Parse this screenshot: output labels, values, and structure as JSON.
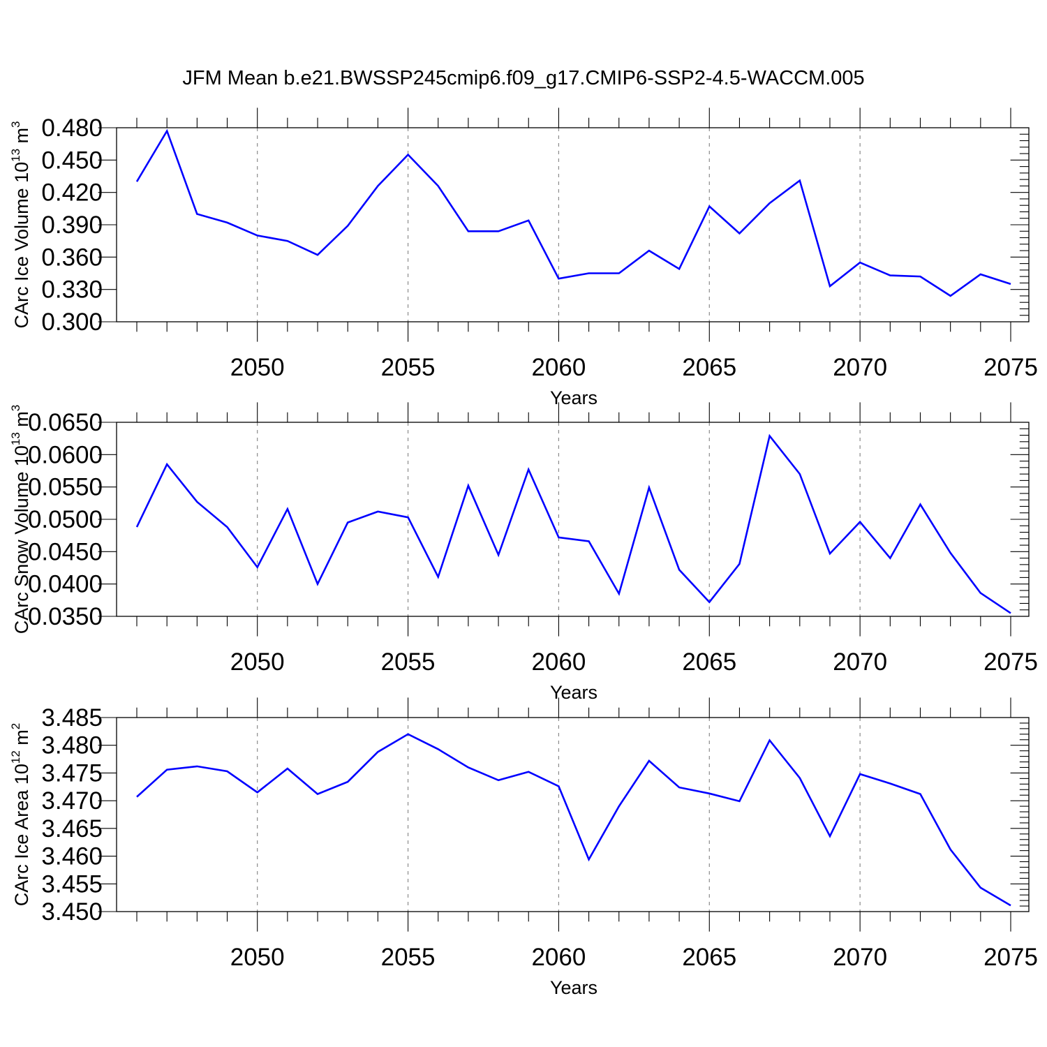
{
  "figure": {
    "title": "JFM Mean b.e21.BWSSP245cmip6.f09_g17.CMIP6-SSP2-4.5-WACCM.005",
    "line_color": "#0000ff"
  },
  "chart_data": [
    {
      "type": "line",
      "xlabel": "Years",
      "ylabel": {
        "main": "CArc Ice Volume 10",
        "exp": "13",
        "unit": " m",
        "unit_exp": "3"
      },
      "xlim": [
        2046,
        2075
      ],
      "ylim": [
        0.3,
        0.48
      ],
      "xticks": [
        2050,
        2055,
        2060,
        2065,
        2070,
        2075
      ],
      "xtick_labels": [
        "2050",
        "2055",
        "2060",
        "2065",
        "2070",
        "2075"
      ],
      "yticks": [
        0.3,
        0.33,
        0.36,
        0.39,
        0.42,
        0.45,
        0.48
      ],
      "ytick_labels": [
        "0.300",
        "0.330",
        "0.360",
        "0.390",
        "0.420",
        "0.450",
        "0.480"
      ],
      "grid": "dashed vertical at major x ticks",
      "series": [
        {
          "name": "CArc Ice Volume",
          "x": [
            2046,
            2047,
            2048,
            2049,
            2050,
            2051,
            2052,
            2053,
            2054,
            2055,
            2056,
            2057,
            2058,
            2059,
            2060,
            2061,
            2062,
            2063,
            2064,
            2065,
            2066,
            2067,
            2068,
            2069,
            2070,
            2071,
            2072,
            2073,
            2074,
            2075
          ],
          "values": [
            0.43,
            0.477,
            0.4,
            0.392,
            0.38,
            0.375,
            0.362,
            0.389,
            0.426,
            0.455,
            0.426,
            0.384,
            0.384,
            0.394,
            0.34,
            0.345,
            0.345,
            0.366,
            0.349,
            0.407,
            0.382,
            0.41,
            0.431,
            0.333,
            0.355,
            0.343,
            0.342,
            0.324,
            0.344,
            0.335
          ]
        }
      ]
    },
    {
      "type": "line",
      "xlabel": "Years",
      "ylabel": {
        "main": "CArc Snow Volume 10",
        "exp": "13",
        "unit": " m",
        "unit_exp": "3"
      },
      "xlim": [
        2046,
        2075
      ],
      "ylim": [
        0.035,
        0.065
      ],
      "xticks": [
        2050,
        2055,
        2060,
        2065,
        2070,
        2075
      ],
      "xtick_labels": [
        "2050",
        "2055",
        "2060",
        "2065",
        "2070",
        "2075"
      ],
      "yticks": [
        0.035,
        0.04,
        0.045,
        0.05,
        0.055,
        0.06,
        0.065
      ],
      "ytick_labels": [
        "0.0350",
        "0.0400",
        "0.0450",
        "0.0500",
        "0.0550",
        "0.0600",
        "0.0650"
      ],
      "grid": "dashed vertical at major x ticks",
      "series": [
        {
          "name": "CArc Snow Volume",
          "x": [
            2046,
            2047,
            2048,
            2049,
            2050,
            2051,
            2052,
            2053,
            2054,
            2055,
            2056,
            2057,
            2058,
            2059,
            2060,
            2061,
            2062,
            2063,
            2064,
            2065,
            2066,
            2067,
            2068,
            2069,
            2070,
            2071,
            2072,
            2073,
            2074,
            2075
          ],
          "values": [
            0.0488,
            0.0585,
            0.0527,
            0.0488,
            0.0426,
            0.0516,
            0.04,
            0.0495,
            0.0512,
            0.0503,
            0.0411,
            0.0552,
            0.0445,
            0.0577,
            0.0472,
            0.0466,
            0.0385,
            0.0549,
            0.0422,
            0.0372,
            0.0431,
            0.0629,
            0.057,
            0.0447,
            0.0496,
            0.044,
            0.0523,
            0.0448,
            0.0386,
            0.0355
          ]
        }
      ]
    },
    {
      "type": "line",
      "xlabel": "Years",
      "ylabel": {
        "main": "CArc Ice Area 10",
        "exp": "12",
        "unit": " m",
        "unit_exp": "2"
      },
      "xlim": [
        2046,
        2075
      ],
      "ylim": [
        3.45,
        3.485
      ],
      "xticks": [
        2050,
        2055,
        2060,
        2065,
        2070,
        2075
      ],
      "xtick_labels": [
        "2050",
        "2055",
        "2060",
        "2065",
        "2070",
        "2075"
      ],
      "yticks": [
        3.45,
        3.455,
        3.46,
        3.465,
        3.47,
        3.475,
        3.48,
        3.485
      ],
      "ytick_labels": [
        "3.450",
        "3.455",
        "3.460",
        "3.465",
        "3.470",
        "3.475",
        "3.480",
        "3.485"
      ],
      "grid": "dashed vertical at major x ticks",
      "series": [
        {
          "name": "CArc Ice Area",
          "x": [
            2046,
            2047,
            2048,
            2049,
            2050,
            2051,
            2052,
            2053,
            2054,
            2055,
            2056,
            2057,
            2058,
            2059,
            2060,
            2061,
            2062,
            2063,
            2064,
            2065,
            2066,
            2067,
            2068,
            2069,
            2070,
            2071,
            2072,
            2073,
            2074,
            2075
          ],
          "values": [
            3.4707,
            3.4756,
            3.4762,
            3.4753,
            3.4715,
            3.4758,
            3.4712,
            3.4734,
            3.4788,
            3.482,
            3.4793,
            3.476,
            3.4737,
            3.4752,
            3.4726,
            3.4594,
            3.469,
            3.4772,
            3.4724,
            3.4713,
            3.4699,
            3.4809,
            3.4741,
            3.4636,
            3.4748,
            3.4731,
            3.4712,
            3.4612,
            3.4543,
            3.4511
          ]
        }
      ]
    }
  ]
}
